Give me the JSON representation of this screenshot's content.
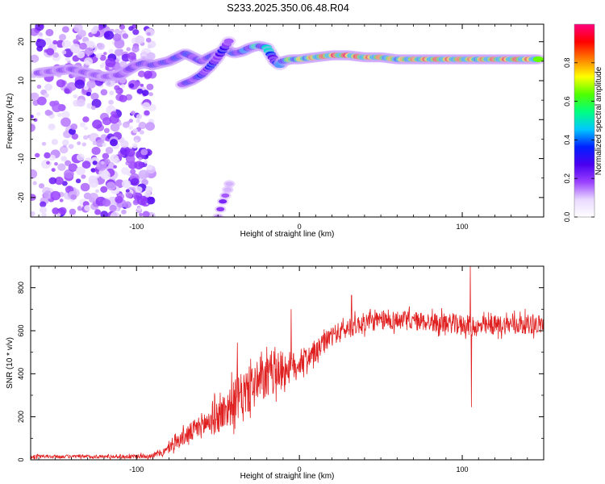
{
  "title": "S233.2025.350.06.48.R04",
  "chart_data": [
    {
      "type": "heatmap",
      "xlabel": "Height of straight line (km)",
      "ylabel": "Frequency (Hz)",
      "xlim": [
        -165,
        150
      ],
      "ylim": [
        -25,
        24.5
      ],
      "xticks": [
        -100,
        0,
        100
      ],
      "yticks": [
        -20,
        -10,
        0,
        10,
        20
      ],
      "colorbar": {
        "label": "Normalized spectral amplitude",
        "range": [
          0,
          1
        ],
        "ticks": [
          0.0,
          0.2,
          0.4,
          0.6,
          0.8
        ],
        "tick_labels": [
          "0.0",
          "0.2",
          "0.4",
          "0.6",
          "0.8"
        ],
        "colors": [
          "#ffffff",
          "#e8d8ff",
          "#9a40ff",
          "#4a00f0",
          "#0020ff",
          "#00c8ff",
          "#00ff80",
          "#50ff00",
          "#ffff00",
          "#ff8000",
          "#ff0000",
          "#ff0080"
        ]
      },
      "ridge": {
        "x": [
          -160,
          -150,
          -140,
          -130,
          -120,
          -110,
          -100,
          -95,
          -90,
          -80,
          -75,
          -70,
          -65,
          -60,
          -55,
          -50,
          -45,
          -40,
          -35,
          -30,
          -25,
          -20,
          -15,
          -12,
          -10,
          -5,
          0,
          10,
          20,
          30,
          40,
          50,
          60,
          70,
          80,
          90,
          100,
          110,
          120,
          130,
          140,
          148
        ],
        "y": [
          12,
          12.5,
          13,
          12,
          11,
          11.5,
          14,
          14.5,
          14,
          15,
          16,
          17,
          16,
          15,
          16,
          17,
          18,
          17,
          17.5,
          18.5,
          19,
          18.5,
          15,
          14,
          15,
          15.5,
          15.5,
          16,
          16.5,
          16.5,
          16,
          16,
          15.5,
          15.5,
          15.5,
          15.5,
          15.5,
          15.5,
          15.5,
          15.5,
          15.5,
          15.5
        ],
        "amplitude": [
          0.22,
          0.2,
          0.24,
          0.22,
          0.2,
          0.22,
          0.28,
          0.3,
          0.3,
          0.32,
          0.34,
          0.36,
          0.34,
          0.3,
          0.32,
          0.36,
          0.38,
          0.36,
          0.4,
          0.45,
          0.55,
          0.5,
          0.42,
          0.4,
          0.55,
          0.65,
          0.7,
          0.8,
          0.88,
          0.9,
          0.85,
          0.82,
          0.72,
          0.8,
          0.85,
          0.85,
          0.82,
          0.8,
          0.84,
          0.86,
          0.84,
          0.82
        ]
      },
      "branch": {
        "x": [
          -72,
          -66,
          -60,
          -55,
          -50,
          -46,
          -42
        ],
        "y": [
          9,
          10,
          11.5,
          13.5,
          16,
          18.5,
          21
        ],
        "amplitude": [
          0.3,
          0.32,
          0.34,
          0.34,
          0.32,
          0.3,
          0.28
        ]
      },
      "low_segment": {
        "x": [
          -50,
          -47,
          -44,
          -42
        ],
        "y": [
          -25,
          -21,
          -18,
          -15
        ],
        "amplitude": [
          0.22,
          0.2,
          0.18,
          0.16
        ]
      },
      "noise_region_x": [
        -165,
        -90
      ]
    },
    {
      "type": "line",
      "xlabel": "Height of straight line (km)",
      "ylabel": "SNR (10 * v/v)",
      "xlim": [
        -165,
        150
      ],
      "ylim": [
        0,
        900
      ],
      "xticks": [
        -100,
        0,
        100
      ],
      "yticks": [
        0,
        200,
        400,
        600,
        800
      ],
      "series": [
        {
          "name": "SNR",
          "color": "#e02020",
          "x": [
            -165,
            -150,
            -120,
            -100,
            -90,
            -82,
            -78,
            -70,
            -60,
            -50,
            -40,
            -30,
            -20,
            -15,
            -10,
            -5,
            0,
            10,
            20,
            30,
            40,
            60,
            80,
            100,
            110,
            120,
            130,
            140,
            150
          ],
          "y": [
            15,
            15,
            15,
            15,
            20,
            40,
            70,
            110,
            160,
            200,
            270,
            330,
            380,
            410,
            420,
            430,
            450,
            500,
            580,
            610,
            640,
            650,
            640,
            630,
            615,
            625,
            630,
            630,
            630
          ],
          "noise": [
            8,
            8,
            8,
            10,
            12,
            20,
            30,
            40,
            60,
            80,
            100,
            110,
            100,
            100,
            90,
            70,
            60,
            50,
            45,
            45,
            45,
            45,
            45,
            45,
            45,
            45,
            45,
            45,
            45
          ],
          "spikes": [
            {
              "x": -38,
              "y": 545
            },
            {
              "x": -30,
              "y": 470
            },
            {
              "x": -15,
              "y": 525
            },
            {
              "x": -5,
              "y": 700
            },
            {
              "x": 10,
              "y": 460
            },
            {
              "x": 32,
              "y": 765
            },
            {
              "x": 105,
              "y": 900
            },
            {
              "x": 105.6,
              "y": 245
            }
          ]
        }
      ]
    }
  ]
}
